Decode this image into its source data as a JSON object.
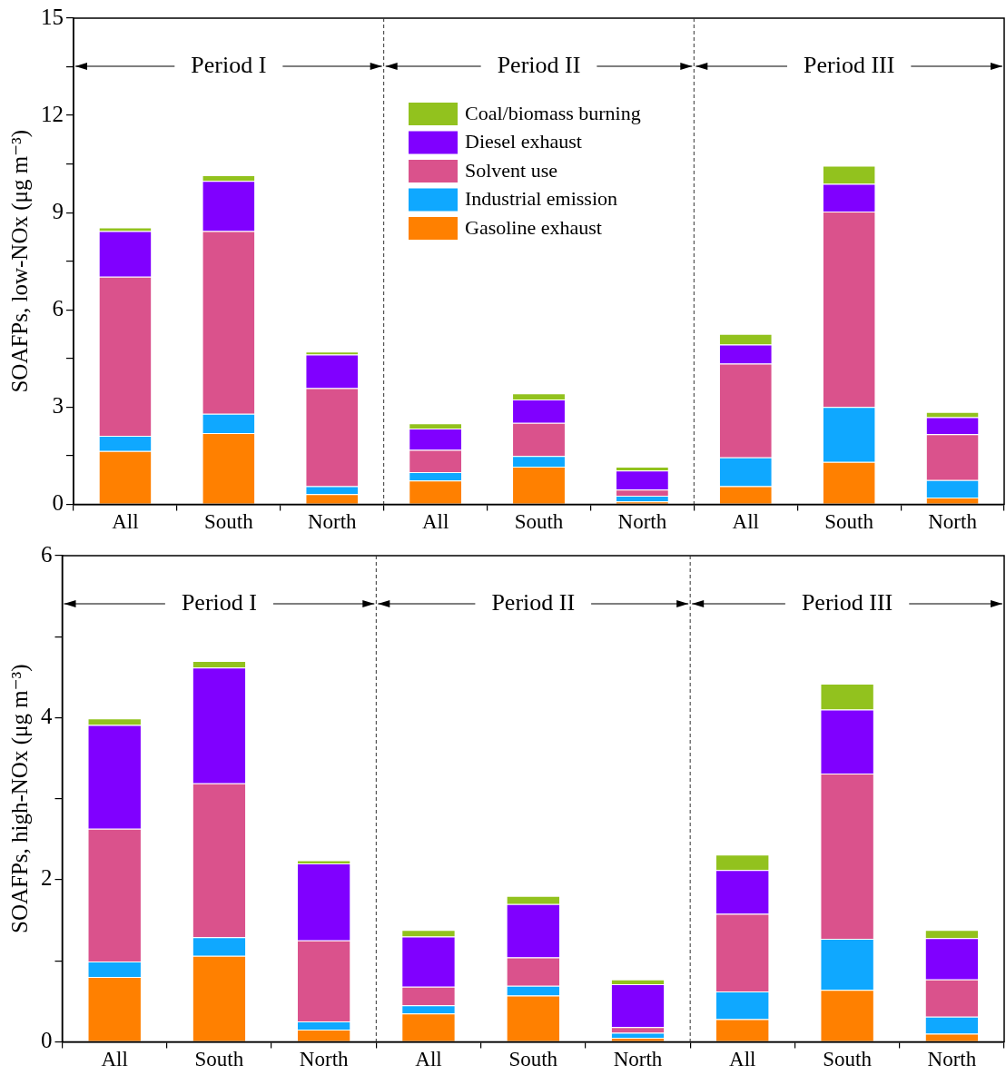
{
  "chart_data": [
    {
      "type": "bar",
      "stacked": true,
      "ylabel": "SOAFPs, low-NOx (μg m⁻³)",
      "categories": [
        "All",
        "South",
        "North",
        "All",
        "South",
        "North",
        "All",
        "South",
        "North"
      ],
      "ylim": [
        0,
        15
      ],
      "yticks": [
        0,
        {
          "value": 1.5,
          "label": null
        },
        3,
        {
          "value": 4.5,
          "label": null
        },
        6,
        {
          "value": 7.5,
          "label": null
        },
        9,
        {
          "value": 10.5,
          "label": null
        },
        12,
        {
          "value": 13.5,
          "label": null
        },
        15
      ],
      "grid": false,
      "legend": "top",
      "annotations": [
        "Period I",
        "Period II",
        "Period III"
      ],
      "series": [
        {
          "name": "Gasoline exhaust",
          "color": "#ff8000",
          "values": [
            1.64,
            2.2,
            0.31,
            0.73,
            1.16,
            0.09,
            0.56,
            1.31,
            0.21
          ]
        },
        {
          "name": "Industrial emission",
          "color": "#0fa8ff",
          "values": [
            0.47,
            0.59,
            0.25,
            0.26,
            0.33,
            0.17,
            0.89,
            1.69,
            0.54
          ]
        },
        {
          "name": "Solvent use",
          "color": "#da528c",
          "values": [
            4.91,
            5.64,
            3.02,
            0.69,
            1.02,
            0.19,
            2.89,
            6.03,
            1.41
          ]
        },
        {
          "name": "Diesel exhaust",
          "color": "#8000ff",
          "values": [
            1.41,
            1.55,
            1.04,
            0.66,
            0.72,
            0.59,
            0.59,
            0.86,
            0.53
          ]
        },
        {
          "name": "Coal/biomass burning",
          "color": "#92c21e",
          "values": [
            0.11,
            0.17,
            0.09,
            0.16,
            0.19,
            0.12,
            0.33,
            0.56,
            0.16
          ]
        }
      ]
    },
    {
      "type": "bar",
      "stacked": true,
      "ylabel": "SOAFPs, high-NOx (μg m⁻³)",
      "categories": [
        "All",
        "South",
        "North",
        "All",
        "South",
        "North",
        "All",
        "South",
        "North"
      ],
      "ylim": [
        0,
        6
      ],
      "yticks": [
        0,
        {
          "value": 1,
          "label": null
        },
        2,
        {
          "value": 3,
          "label": null
        },
        4,
        {
          "value": 5,
          "label": null
        },
        6
      ],
      "grid": false,
      "legend": false,
      "annotations": [
        "Period I",
        "Period II",
        "Period III"
      ],
      "series": [
        {
          "color": "#ff8000",
          "values": [
            0.8,
            1.06,
            0.15,
            0.35,
            0.57,
            0.05,
            0.28,
            0.64,
            0.1
          ]
        },
        {
          "color": "#0fa8ff",
          "values": [
            0.19,
            0.23,
            0.1,
            0.1,
            0.12,
            0.06,
            0.34,
            0.63,
            0.21
          ]
        },
        {
          "color": "#da528c",
          "values": [
            1.64,
            1.9,
            1.0,
            0.23,
            0.35,
            0.07,
            0.96,
            2.04,
            0.46
          ]
        },
        {
          "color": "#8000ff",
          "values": [
            1.28,
            1.43,
            0.95,
            0.62,
            0.66,
            0.53,
            0.54,
            0.79,
            0.51
          ]
        },
        {
          "color": "#92c21e",
          "values": [
            0.08,
            0.08,
            0.04,
            0.08,
            0.1,
            0.06,
            0.19,
            0.32,
            0.1
          ]
        }
      ]
    }
  ]
}
